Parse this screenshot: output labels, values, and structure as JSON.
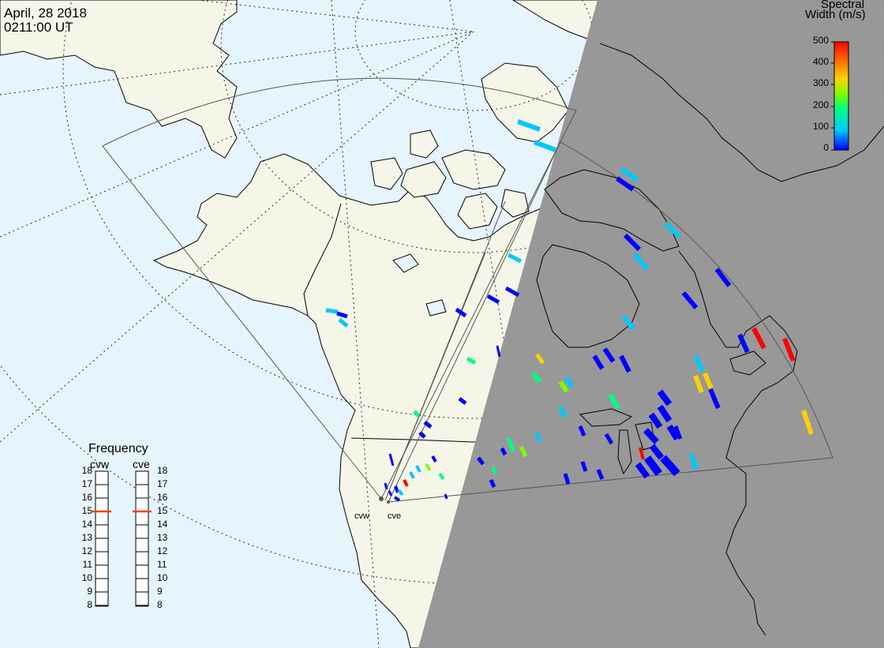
{
  "header": {
    "date": "April, 28 2018",
    "time": "0211:00 UT"
  },
  "colorbar": {
    "title_line1": "Spectral",
    "title_line2": "Width (m/s)",
    "ticks": [
      "500",
      "400",
      "300",
      "200",
      "100",
      "0"
    ],
    "range": [
      0,
      500
    ],
    "colors": [
      "#0000ff",
      "#00c8ff",
      "#00ff80",
      "#80ff00",
      "#ffd000",
      "#ff7000",
      "#ff0000"
    ]
  },
  "frequency": {
    "title": "Frequency",
    "radar_labels": [
      "cvw",
      "cve"
    ],
    "ticks": [
      "18",
      "17",
      "16",
      "15",
      "14",
      "13",
      "12",
      "11",
      "10",
      "9",
      "8"
    ],
    "cvw_selected": 15,
    "cve_selected": 15,
    "marker_color": "#ff4000"
  },
  "radars": [
    {
      "code": "cvw"
    },
    {
      "code": "cve"
    }
  ],
  "map_colors": {
    "ocean": "#e6f4fd",
    "land": "#f6f6e8",
    "night": "#969696"
  },
  "echoes_width_ms": [
    120,
    80,
    90,
    40,
    60,
    30,
    20,
    10,
    180,
    20,
    350,
    40,
    150,
    0,
    20,
    50,
    30,
    80,
    20,
    30,
    100,
    10,
    480,
    490,
    60,
    360,
    300,
    20,
    10,
    20,
    40,
    160,
    230,
    120,
    130,
    60,
    20,
    10,
    30,
    20,
    10,
    0,
    20,
    340,
    0,
    30,
    10,
    80,
    500,
    20,
    30,
    10,
    0,
    20,
    50,
    220,
    200,
    30,
    40,
    190,
    40,
    160,
    30,
    230,
    60,
    90,
    480,
    20,
    30,
    20,
    10,
    30,
    10,
    80,
    20
  ]
}
